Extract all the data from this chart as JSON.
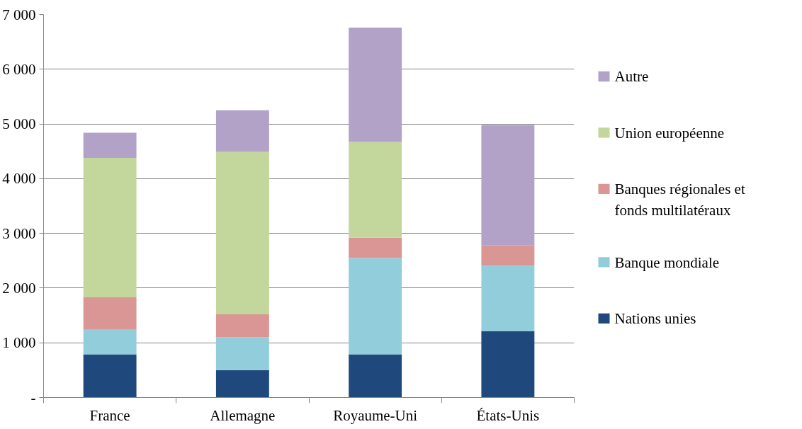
{
  "chart_data": {
    "type": "bar",
    "stacked": true,
    "categories": [
      "France",
      "Allemagne",
      "Royaume-Uni",
      "États-Unis"
    ],
    "series": [
      {
        "name": "Nations unies",
        "color": "#1f497d",
        "values": [
          790,
          500,
          790,
          1210
        ]
      },
      {
        "name": "Banque mondiale",
        "color": "#92cddc",
        "values": [
          450,
          600,
          1760,
          1200
        ]
      },
      {
        "name": "Banques régionales et fonds multilatéraux",
        "color": "#d99694",
        "values": [
          590,
          420,
          370,
          370
        ]
      },
      {
        "name": "Union européenne",
        "color": "#c3d69b",
        "values": [
          2550,
          2970,
          1750,
          0
        ]
      },
      {
        "name": "Autre",
        "color": "#b2a2c7",
        "values": [
          460,
          760,
          2090,
          2200
        ]
      }
    ],
    "ylim": [
      0,
      7000
    ],
    "yticks": [
      {
        "value": 0,
        "label": "-"
      },
      {
        "value": 1000,
        "label": "1 000"
      },
      {
        "value": 2000,
        "label": "2 000"
      },
      {
        "value": 3000,
        "label": "3 000"
      },
      {
        "value": 4000,
        "label": "4 000"
      },
      {
        "value": 5000,
        "label": "5 000"
      },
      {
        "value": 6000,
        "label": "6 000"
      },
      {
        "value": 7000,
        "label": "7 000"
      }
    ],
    "grid": "y",
    "legend": "right"
  }
}
